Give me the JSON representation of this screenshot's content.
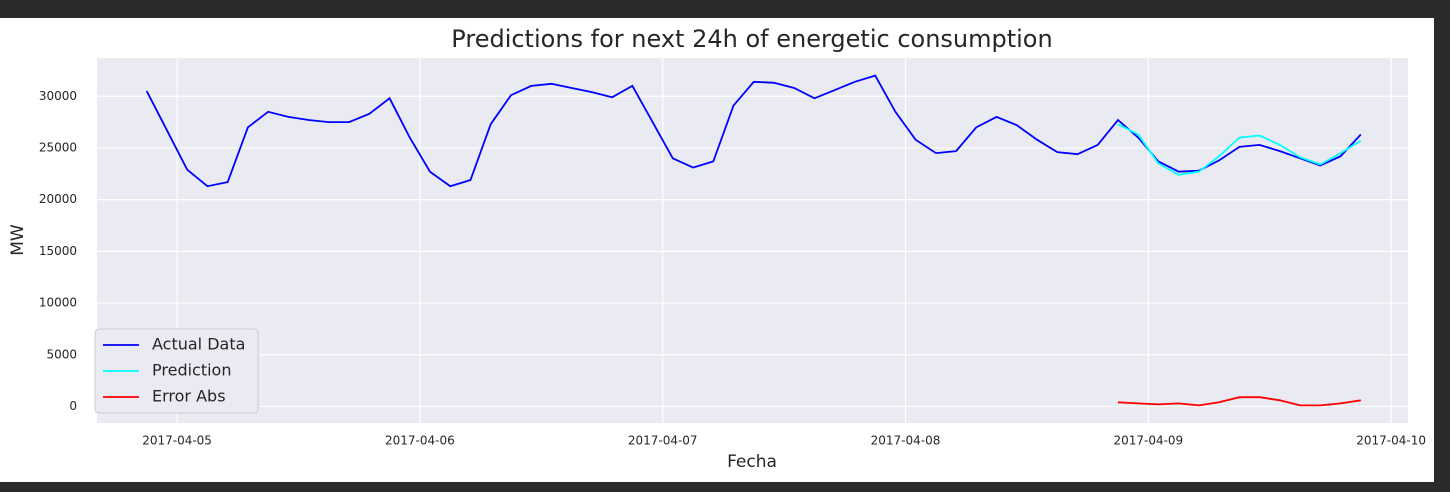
{
  "chart_data": {
    "type": "line",
    "title": "Predictions for next 24h of energetic consumption",
    "x_label": "Fecha",
    "y_label": "MW",
    "x": [
      "2017-04-04T21:00",
      "2017-04-04T23:00",
      "2017-04-05T01:00",
      "2017-04-05T03:00",
      "2017-04-05T05:00",
      "2017-04-05T07:00",
      "2017-04-05T09:00",
      "2017-04-05T11:00",
      "2017-04-05T13:00",
      "2017-04-05T15:00",
      "2017-04-05T17:00",
      "2017-04-05T19:00",
      "2017-04-05T21:00",
      "2017-04-05T23:00",
      "2017-04-06T01:00",
      "2017-04-06T03:00",
      "2017-04-06T05:00",
      "2017-04-06T07:00",
      "2017-04-06T09:00",
      "2017-04-06T11:00",
      "2017-04-06T13:00",
      "2017-04-06T15:00",
      "2017-04-06T17:00",
      "2017-04-06T19:00",
      "2017-04-06T21:00",
      "2017-04-06T23:00",
      "2017-04-07T01:00",
      "2017-04-07T03:00",
      "2017-04-07T05:00",
      "2017-04-07T07:00",
      "2017-04-07T09:00",
      "2017-04-07T11:00",
      "2017-04-07T13:00",
      "2017-04-07T15:00",
      "2017-04-07T17:00",
      "2017-04-07T19:00",
      "2017-04-07T21:00",
      "2017-04-07T23:00",
      "2017-04-08T01:00",
      "2017-04-08T03:00",
      "2017-04-08T05:00",
      "2017-04-08T07:00",
      "2017-04-08T09:00",
      "2017-04-08T11:00",
      "2017-04-08T13:00",
      "2017-04-08T15:00",
      "2017-04-08T17:00",
      "2017-04-08T19:00",
      "2017-04-08T21:00",
      "2017-04-08T23:00",
      "2017-04-09T01:00",
      "2017-04-09T03:00",
      "2017-04-09T05:00",
      "2017-04-09T07:00",
      "2017-04-09T09:00",
      "2017-04-09T11:00",
      "2017-04-09T13:00",
      "2017-04-09T15:00",
      "2017-04-09T17:00",
      "2017-04-09T19:00",
      "2017-04-09T21:00"
    ],
    "series": [
      {
        "name": "Actual Data",
        "color": "#0000ff",
        "values": [
          30500,
          26700,
          22900,
          21300,
          21700,
          27000,
          28500,
          28000,
          27700,
          27500,
          27500,
          28300,
          29800,
          26000,
          22700,
          21300,
          21900,
          27300,
          30100,
          31000,
          31200,
          30800,
          30400,
          29900,
          31000,
          27500,
          24000,
          23100,
          23700,
          29100,
          31400,
          31300,
          30800,
          29800,
          30600,
          31400,
          32000,
          28500,
          25800,
          24500,
          24700,
          27000,
          28000,
          27200,
          25800,
          24600,
          24400,
          25300,
          27700,
          26000,
          23700,
          22700,
          22800,
          23800,
          25100,
          25300,
          24700,
          24000,
          23300,
          24200,
          26300
        ]
      },
      {
        "name": "Prediction",
        "color": "#00ffff",
        "values": [
          null,
          null,
          null,
          null,
          null,
          null,
          null,
          null,
          null,
          null,
          null,
          null,
          null,
          null,
          null,
          null,
          null,
          null,
          null,
          null,
          null,
          null,
          null,
          null,
          null,
          null,
          null,
          null,
          null,
          null,
          null,
          null,
          null,
          null,
          null,
          null,
          null,
          null,
          null,
          null,
          null,
          null,
          null,
          null,
          null,
          null,
          null,
          null,
          27300,
          26300,
          23500,
          22400,
          22700,
          24200,
          26000,
          26200,
          25300,
          24100,
          23400,
          24500,
          25700
        ]
      },
      {
        "name": "Error Abs",
        "color": "#ff0000",
        "values": [
          null,
          null,
          null,
          null,
          null,
          null,
          null,
          null,
          null,
          null,
          null,
          null,
          null,
          null,
          null,
          null,
          null,
          null,
          null,
          null,
          null,
          null,
          null,
          null,
          null,
          null,
          null,
          null,
          null,
          null,
          null,
          null,
          null,
          null,
          null,
          null,
          null,
          null,
          null,
          null,
          null,
          null,
          null,
          null,
          null,
          null,
          null,
          null,
          400,
          300,
          200,
          300,
          100,
          400,
          900,
          900,
          600,
          100,
          100,
          300,
          600
        ]
      }
    ],
    "xlim": [
      "2017-04-04T16:05",
      "2017-04-10T01:40"
    ],
    "xticks": [
      "2017-04-05",
      "2017-04-06",
      "2017-04-07",
      "2017-04-08",
      "2017-04-09",
      "2017-04-10"
    ],
    "ylim": [
      -1600,
      33700
    ],
    "yticks": [
      0,
      5000,
      10000,
      15000,
      20000,
      25000,
      30000
    ],
    "grid": true,
    "legend": "lower left"
  }
}
